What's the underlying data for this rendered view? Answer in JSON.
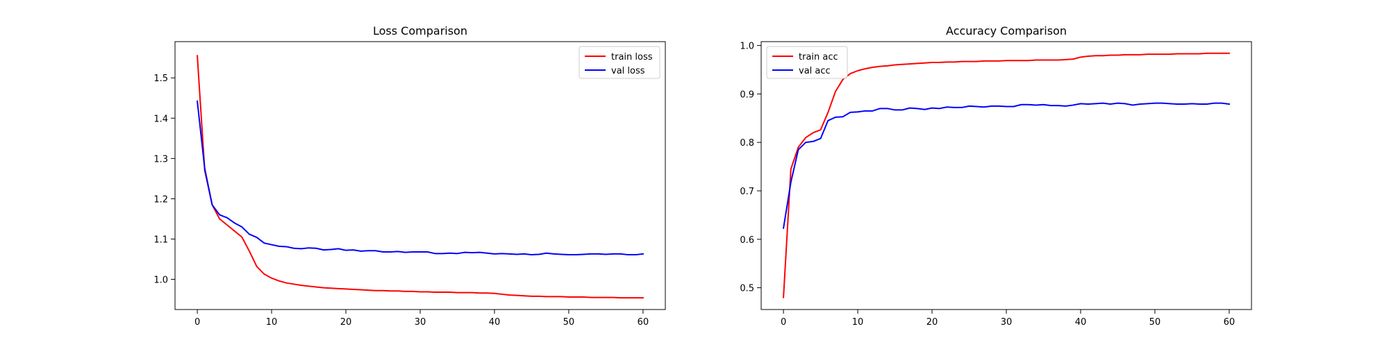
{
  "chart_data": [
    {
      "type": "line",
      "title": "Loss Comparison",
      "xlabel": "",
      "ylabel": "",
      "xlim": [
        -3,
        63
      ],
      "ylim": [
        0.925,
        1.59
      ],
      "xticks": [
        0,
        10,
        20,
        30,
        40,
        50,
        60
      ],
      "yticks": [
        1.0,
        1.1,
        1.2,
        1.3,
        1.4,
        1.5
      ],
      "legend_position": "top-right",
      "grid": false,
      "series": [
        {
          "name": "train loss",
          "color": "#ff0000",
          "x": [
            0,
            1,
            2,
            3,
            4,
            5,
            6,
            7,
            8,
            9,
            10,
            11,
            12,
            13,
            14,
            15,
            16,
            17,
            18,
            19,
            20,
            21,
            22,
            23,
            24,
            25,
            26,
            27,
            28,
            29,
            30,
            31,
            32,
            33,
            34,
            35,
            36,
            37,
            38,
            39,
            40,
            41,
            42,
            43,
            44,
            45,
            46,
            47,
            48,
            49,
            50,
            51,
            52,
            53,
            54,
            55,
            56,
            57,
            58,
            59,
            60
          ],
          "values": [
            1.555,
            1.27,
            1.185,
            1.15,
            1.135,
            1.12,
            1.105,
            1.07,
            1.032,
            1.013,
            1.003,
            0.996,
            0.991,
            0.988,
            0.985,
            0.983,
            0.981,
            0.979,
            0.978,
            0.977,
            0.976,
            0.975,
            0.974,
            0.973,
            0.972,
            0.972,
            0.971,
            0.971,
            0.97,
            0.97,
            0.969,
            0.969,
            0.968,
            0.968,
            0.968,
            0.967,
            0.967,
            0.967,
            0.966,
            0.966,
            0.965,
            0.963,
            0.961,
            0.96,
            0.959,
            0.958,
            0.958,
            0.957,
            0.957,
            0.957,
            0.956,
            0.956,
            0.956,
            0.955,
            0.955,
            0.955,
            0.955,
            0.954,
            0.954,
            0.954,
            0.954
          ]
        },
        {
          "name": "val loss",
          "color": "#0000ff",
          "x": [
            0,
            1,
            2,
            3,
            4,
            5,
            6,
            7,
            8,
            9,
            10,
            11,
            12,
            13,
            14,
            15,
            16,
            17,
            18,
            19,
            20,
            21,
            22,
            23,
            24,
            25,
            26,
            27,
            28,
            29,
            30,
            31,
            32,
            33,
            34,
            35,
            36,
            37,
            38,
            39,
            40,
            41,
            42,
            43,
            44,
            45,
            46,
            47,
            48,
            49,
            50,
            51,
            52,
            53,
            54,
            55,
            56,
            57,
            58,
            59,
            60
          ],
          "values": [
            1.442,
            1.275,
            1.185,
            1.16,
            1.153,
            1.14,
            1.13,
            1.112,
            1.104,
            1.09,
            1.086,
            1.082,
            1.081,
            1.077,
            1.076,
            1.078,
            1.077,
            1.073,
            1.074,
            1.076,
            1.072,
            1.073,
            1.07,
            1.071,
            1.071,
            1.068,
            1.068,
            1.069,
            1.067,
            1.068,
            1.068,
            1.068,
            1.064,
            1.064,
            1.065,
            1.064,
            1.067,
            1.066,
            1.067,
            1.065,
            1.063,
            1.064,
            1.063,
            1.062,
            1.063,
            1.061,
            1.062,
            1.065,
            1.063,
            1.062,
            1.061,
            1.061,
            1.062,
            1.063,
            1.063,
            1.062,
            1.063,
            1.063,
            1.061,
            1.061,
            1.063
          ]
        }
      ]
    },
    {
      "type": "line",
      "title": "Accuracy Comparison",
      "xlabel": "",
      "ylabel": "",
      "xlim": [
        -3,
        63
      ],
      "ylim": [
        0.455,
        1.008
      ],
      "xticks": [
        0,
        10,
        20,
        30,
        40,
        50,
        60
      ],
      "yticks": [
        0.5,
        0.6,
        0.7,
        0.8,
        0.9,
        1.0
      ],
      "legend_position": "top-left",
      "grid": false,
      "series": [
        {
          "name": "train acc",
          "color": "#ff0000",
          "x": [
            0,
            1,
            2,
            3,
            4,
            5,
            6,
            7,
            8,
            9,
            10,
            11,
            12,
            13,
            14,
            15,
            16,
            17,
            18,
            19,
            20,
            21,
            22,
            23,
            24,
            25,
            26,
            27,
            28,
            29,
            30,
            31,
            32,
            33,
            34,
            35,
            36,
            37,
            38,
            39,
            40,
            41,
            42,
            43,
            44,
            45,
            46,
            47,
            48,
            49,
            50,
            51,
            52,
            53,
            54,
            55,
            56,
            57,
            58,
            59,
            60
          ],
          "values": [
            0.48,
            0.745,
            0.79,
            0.81,
            0.82,
            0.826,
            0.862,
            0.905,
            0.93,
            0.942,
            0.948,
            0.952,
            0.955,
            0.957,
            0.958,
            0.96,
            0.961,
            0.962,
            0.963,
            0.964,
            0.965,
            0.965,
            0.966,
            0.966,
            0.967,
            0.967,
            0.967,
            0.968,
            0.968,
            0.968,
            0.969,
            0.969,
            0.969,
            0.969,
            0.97,
            0.97,
            0.97,
            0.97,
            0.971,
            0.972,
            0.976,
            0.978,
            0.979,
            0.979,
            0.98,
            0.98,
            0.981,
            0.981,
            0.981,
            0.982,
            0.982,
            0.982,
            0.982,
            0.983,
            0.983,
            0.983,
            0.983,
            0.984,
            0.984,
            0.984,
            0.984
          ]
        },
        {
          "name": "val acc",
          "color": "#0000ff",
          "x": [
            0,
            1,
            2,
            3,
            4,
            5,
            6,
            7,
            8,
            9,
            10,
            11,
            12,
            13,
            14,
            15,
            16,
            17,
            18,
            19,
            20,
            21,
            22,
            23,
            24,
            25,
            26,
            27,
            28,
            29,
            30,
            31,
            32,
            33,
            34,
            35,
            36,
            37,
            38,
            39,
            40,
            41,
            42,
            43,
            44,
            45,
            46,
            47,
            48,
            49,
            50,
            51,
            52,
            53,
            54,
            55,
            56,
            57,
            58,
            59,
            60
          ],
          "values": [
            0.623,
            0.718,
            0.785,
            0.8,
            0.802,
            0.808,
            0.845,
            0.852,
            0.853,
            0.862,
            0.863,
            0.865,
            0.865,
            0.87,
            0.87,
            0.867,
            0.867,
            0.871,
            0.87,
            0.868,
            0.871,
            0.87,
            0.873,
            0.872,
            0.872,
            0.875,
            0.874,
            0.873,
            0.875,
            0.875,
            0.874,
            0.874,
            0.878,
            0.878,
            0.877,
            0.878,
            0.876,
            0.876,
            0.875,
            0.877,
            0.88,
            0.879,
            0.88,
            0.881,
            0.879,
            0.881,
            0.88,
            0.877,
            0.879,
            0.88,
            0.881,
            0.881,
            0.88,
            0.879,
            0.879,
            0.88,
            0.879,
            0.879,
            0.881,
            0.881,
            0.879
          ]
        }
      ]
    }
  ]
}
